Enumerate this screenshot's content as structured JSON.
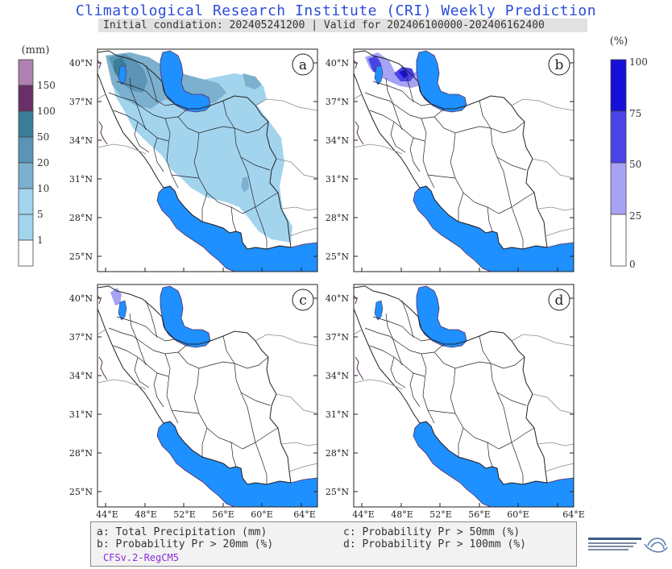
{
  "title": "Climatological Research Institute (CRI) Weekly Prediction",
  "subtitle": "Initial condiation: 202405241200 | Valid for 202406100000-202406162400",
  "left_legend": {
    "unit": "(mm)",
    "labels": [
      "150",
      "100",
      "50",
      "20",
      "10",
      "5",
      "1"
    ],
    "colors": [
      "#b081b0",
      "#6a2f69",
      "#3a7e99",
      "#5b94b4",
      "#7cb0cf",
      "#a3d4ee",
      "#ffffff"
    ]
  },
  "right_legend": {
    "unit": "(%)",
    "labels": [
      "100",
      "75",
      "50",
      "25",
      "0"
    ],
    "colors": [
      "#1610d6",
      "#4a43e6",
      "#a6a3f4",
      "#ffffff"
    ]
  },
  "lat_labels": [
    "40°N",
    "37°N",
    "34°N",
    "31°N",
    "28°N",
    "25°N"
  ],
  "lon_labels": [
    "44°E",
    "48°E",
    "52°E",
    "56°E",
    "60°E",
    "64°E"
  ],
  "panels": [
    {
      "letter": "a"
    },
    {
      "letter": "b"
    },
    {
      "letter": "c"
    },
    {
      "letter": "d"
    }
  ],
  "footer": {
    "a": "a: Total Precipitation (mm)",
    "b": "b: Probability Pr > 20mm (%)",
    "c": "c: Probability Pr > 50mm (%)",
    "d": "d: Probability Pr > 100mm (%)",
    "model": "CFSv.2-RegCM5"
  },
  "colors": {
    "sea": "#1e90ff",
    "title": "#2b4dd8",
    "model": "#8b2be0"
  }
}
